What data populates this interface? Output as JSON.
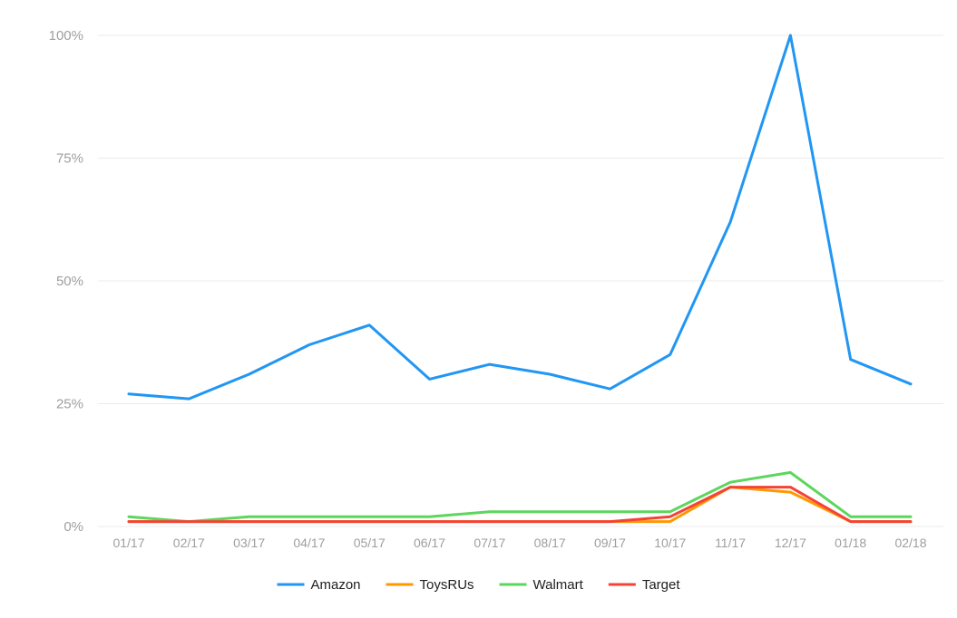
{
  "chart_data": {
    "type": "line",
    "categories": [
      "01/17",
      "02/17",
      "03/17",
      "04/17",
      "05/17",
      "06/17",
      "07/17",
      "08/17",
      "09/17",
      "10/17",
      "11/17",
      "12/17",
      "01/18",
      "02/18"
    ],
    "ylim": [
      0,
      100
    ],
    "yticks": [
      0,
      25,
      50,
      75,
      100
    ],
    "ytick_labels": [
      "0%",
      "25%",
      "50%",
      "75%",
      "100%"
    ],
    "grid": true,
    "legend_position": "bottom-center",
    "series": [
      {
        "name": "Amazon",
        "color": "#2196f3",
        "values": [
          27,
          26,
          31,
          37,
          41,
          30,
          33,
          31,
          28,
          35,
          62,
          100,
          34,
          29
        ]
      },
      {
        "name": "ToysRUs",
        "color": "#ff9800",
        "values": [
          1,
          1,
          1,
          1,
          1,
          1,
          1,
          1,
          1,
          1,
          8,
          7,
          1,
          1
        ]
      },
      {
        "name": "Walmart",
        "color": "#5cd65c",
        "values": [
          2,
          1,
          2,
          2,
          2,
          2,
          3,
          3,
          3,
          3,
          9,
          11,
          2,
          2
        ]
      },
      {
        "name": "Target",
        "color": "#f44336",
        "values": [
          1,
          1,
          1,
          1,
          1,
          1,
          1,
          1,
          1,
          2,
          8,
          8,
          1,
          1
        ]
      }
    ]
  }
}
